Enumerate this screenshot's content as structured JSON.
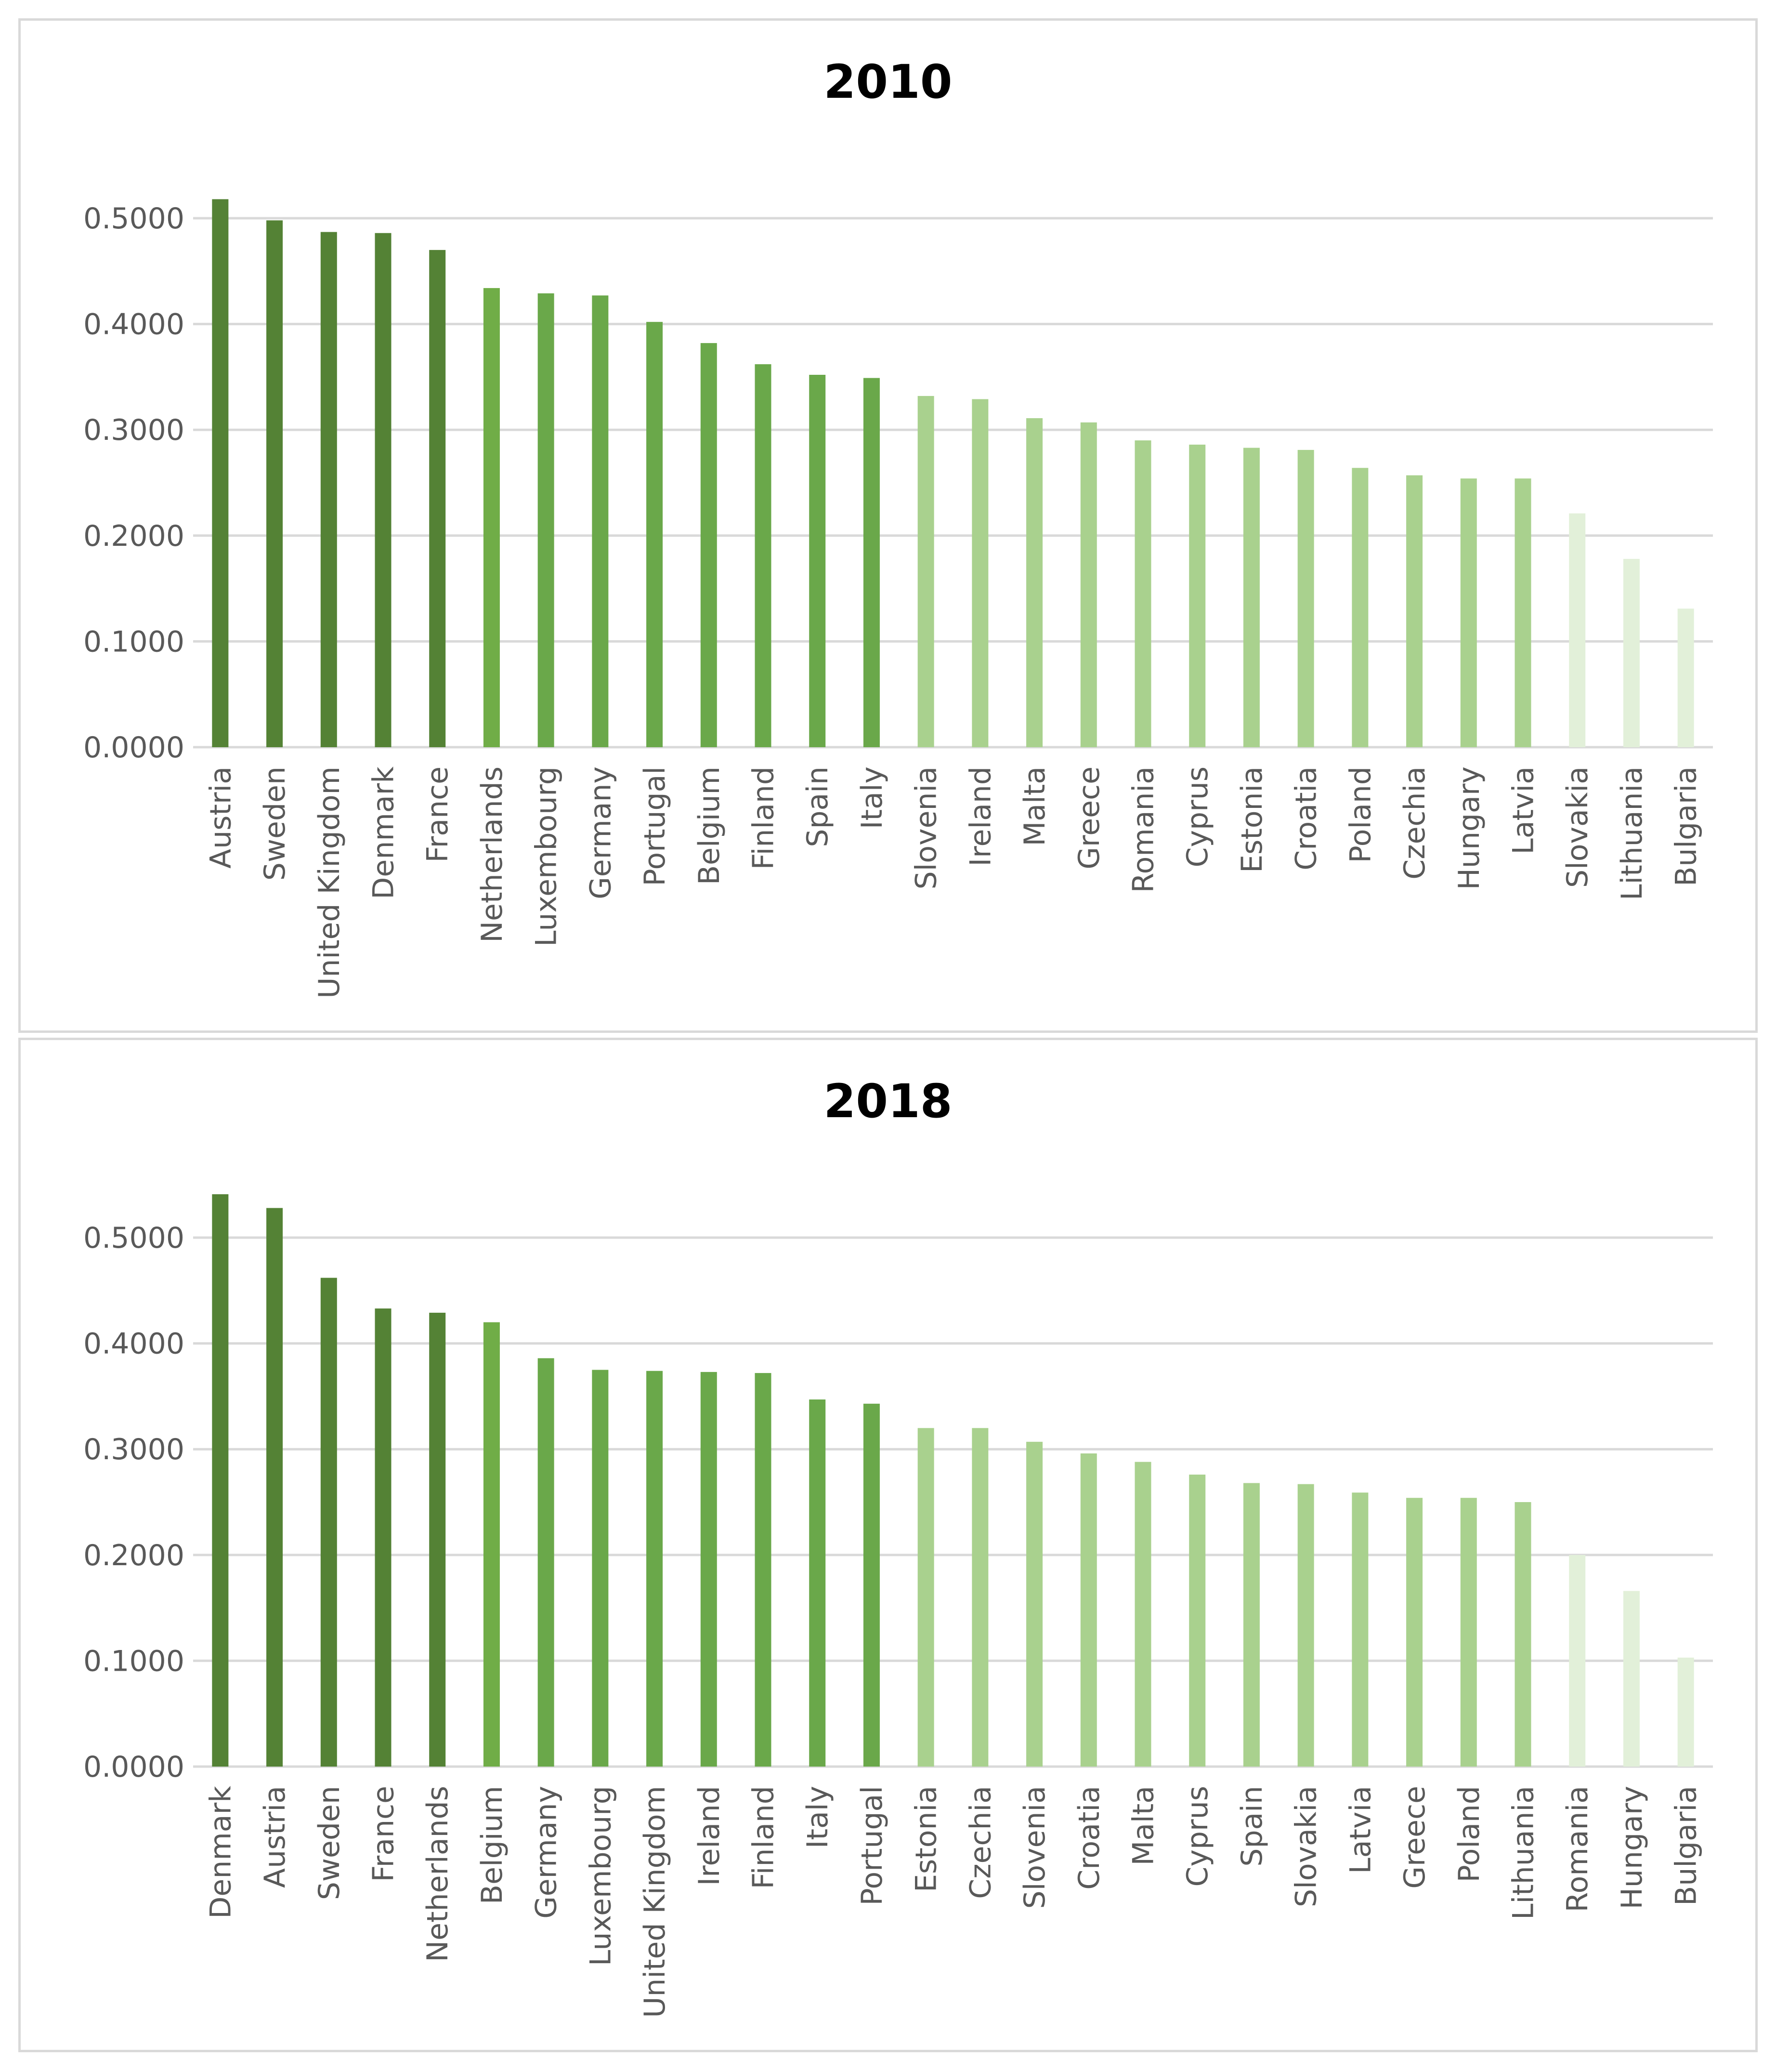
{
  "chart_data": [
    {
      "type": "bar",
      "title": "2010",
      "xlabel": "",
      "ylabel": "",
      "ylim": [
        0,
        0.5
      ],
      "yticks": [
        "0.0000",
        "0.1000",
        "0.2000",
        "0.3000",
        "0.4000",
        "0.5000"
      ],
      "grid": true,
      "categories": [
        "Austria",
        "Sweden",
        "United Kingdom",
        "Denmark",
        "France",
        "Netherlands",
        "Luxembourg",
        "Germany",
        "Portugal",
        "Belgium",
        "Finland",
        "Spain",
        "Italy",
        "Slovenia",
        "Ireland",
        "Malta",
        "Greece",
        "Romania",
        "Cyprus",
        "Estonia",
        "Croatia",
        "Poland",
        "Czechia",
        "Hungary",
        "Latvia",
        "Slovakia",
        "Lithuania",
        "Bulgaria"
      ],
      "values": [
        0.518,
        0.498,
        0.487,
        0.486,
        0.47,
        0.434,
        0.429,
        0.427,
        0.402,
        0.382,
        0.362,
        0.352,
        0.349,
        0.332,
        0.329,
        0.311,
        0.307,
        0.29,
        0.286,
        0.283,
        0.281,
        0.264,
        0.257,
        0.254,
        0.254,
        0.221,
        0.178,
        0.131
      ],
      "colors": [
        "#548235",
        "#548235",
        "#548235",
        "#548235",
        "#548235",
        "#70ad47",
        "#6aa84a",
        "#6aa84a",
        "#6aa84a",
        "#6aa84a",
        "#6aa84a",
        "#6aa84a",
        "#6aa84a",
        "#a9d18e",
        "#a9d18e",
        "#a9d18e",
        "#a9d18e",
        "#a9d18e",
        "#a9d18e",
        "#a9d18e",
        "#a9d18e",
        "#a9d18e",
        "#a9d18e",
        "#a9d18e",
        "#a9d18e",
        "#e2f0d9",
        "#e2f0d9",
        "#e2f0d9"
      ]
    },
    {
      "type": "bar",
      "title": "2018",
      "xlabel": "",
      "ylabel": "",
      "ylim": [
        0,
        0.5
      ],
      "yticks": [
        "0.0000",
        "0.1000",
        "0.2000",
        "0.3000",
        "0.4000",
        "0.5000"
      ],
      "grid": true,
      "categories": [
        "Denmark",
        "Austria",
        "Sweden",
        "France",
        "Netherlands",
        "Belgium",
        "Germany",
        "Luxembourg",
        "United Kingdom",
        "Ireland",
        "Finland",
        "Italy",
        "Portugal",
        "Estonia",
        "Czechia",
        "Slovenia",
        "Croatia",
        "Malta",
        "Cyprus",
        "Spain",
        "Slovakia",
        "Latvia",
        "Greece",
        "Poland",
        "Lithuania",
        "Romania",
        "Hungary",
        "Bulgaria"
      ],
      "values": [
        0.541,
        0.528,
        0.462,
        0.433,
        0.429,
        0.42,
        0.386,
        0.375,
        0.374,
        0.373,
        0.372,
        0.347,
        0.343,
        0.32,
        0.32,
        0.307,
        0.296,
        0.288,
        0.276,
        0.268,
        0.267,
        0.259,
        0.254,
        0.254,
        0.25,
        0.2,
        0.166,
        0.103
      ],
      "colors": [
        "#548235",
        "#548235",
        "#548235",
        "#548235",
        "#548235",
        "#70ad47",
        "#6aa84a",
        "#6aa84a",
        "#6aa84a",
        "#6aa84a",
        "#6aa84a",
        "#6aa84a",
        "#6aa84a",
        "#a9d18e",
        "#a9d18e",
        "#a9d18e",
        "#a9d18e",
        "#a9d18e",
        "#a9d18e",
        "#a9d18e",
        "#a9d18e",
        "#a9d18e",
        "#a9d18e",
        "#a9d18e",
        "#a9d18e",
        "#e2f0d9",
        "#e2f0d9",
        "#e2f0d9"
      ]
    }
  ]
}
